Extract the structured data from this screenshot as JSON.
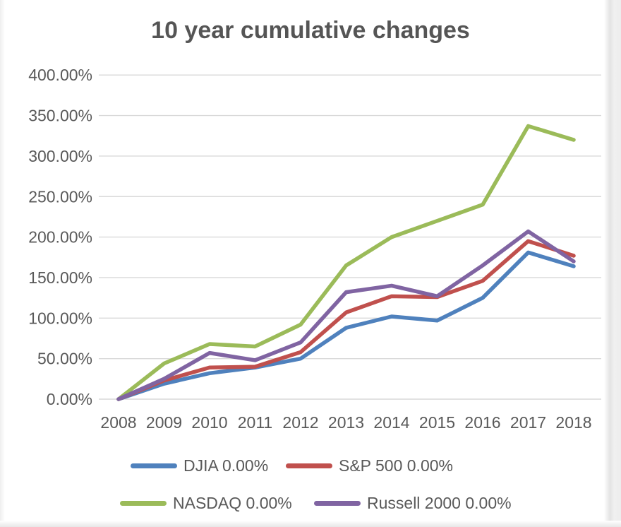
{
  "chart_data": {
    "type": "line",
    "title": "10 year cumulative changes",
    "categories": [
      "2008",
      "2009",
      "2010",
      "2011",
      "2012",
      "2013",
      "2014",
      "2015",
      "2016",
      "2017",
      "2018"
    ],
    "series": [
      {
        "id": "djia",
        "name": "DJIA 0.00%",
        "color": "#4f81bd",
        "values": [
          0,
          19,
          32,
          39,
          50,
          88,
          102,
          97,
          125,
          181,
          164
        ]
      },
      {
        "id": "sp500",
        "name": "S&P 500 0.00%",
        "color": "#c0504d",
        "values": [
          0,
          23,
          39,
          40,
          58,
          107,
          127,
          126,
          146,
          195,
          177
        ]
      },
      {
        "id": "nasdaq",
        "name": "NASDAQ 0.00%",
        "color": "#9bbb59",
        "values": [
          0,
          44,
          68,
          65,
          92,
          165,
          200,
          220,
          240,
          337,
          320
        ]
      },
      {
        "id": "russell2000",
        "name": "Russell 2000 0.00%",
        "color": "#8064a2",
        "values": [
          0,
          25,
          57,
          48,
          70,
          132,
          140,
          127,
          165,
          207,
          170
        ]
      }
    ],
    "y_ticks": [
      "400.00%",
      "350.00%",
      "300.00%",
      "250.00%",
      "200.00%",
      "150.00%",
      "100.00%",
      "50.00%",
      "0.00%"
    ],
    "ylim": [
      0,
      400
    ],
    "xlabel": "",
    "ylabel": "",
    "grid": true,
    "legend_position": "bottom",
    "grid_color": "#d9d9d9",
    "text_color": "#595959"
  }
}
